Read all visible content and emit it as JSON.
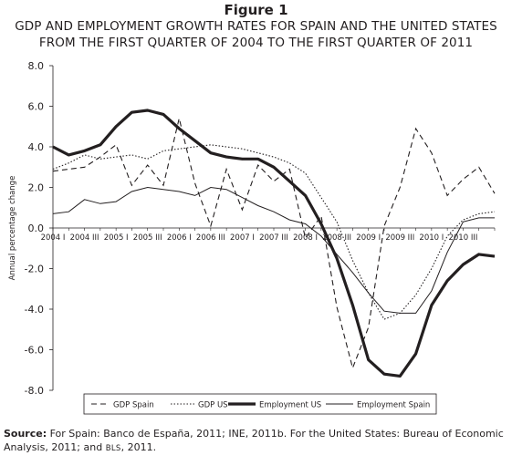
{
  "figure_label": "Figure 1",
  "title_line1": "GDP AND EMPLOYMENT GROWTH RATES FOR SPAIN AND THE UNITED STATES",
  "title_line2": "FROM THE FIRST QUARTER OF 2004 TO THE FIRST QUARTER OF 2011",
  "source": {
    "label": "Source:",
    "text_main": "For Spain: Banco de España, 2011; INE, 2011b. For the United States: Bureau of Economic Analysis, 2011; and",
    "text_smallcaps": "BLS",
    "text_end": ", 2011."
  },
  "chart_data": {
    "type": "line",
    "ylabel": "Annual percentage change",
    "ylim": [
      -8.0,
      8.0
    ],
    "yticks": [
      "8.0",
      "6.0",
      "4.0",
      "2.0",
      "0.0",
      "-2.0",
      "-4.0",
      "-6.0",
      "-8.0"
    ],
    "ytick_values": [
      8,
      6,
      4,
      2,
      0,
      -2,
      -4,
      -6,
      -8
    ],
    "xlabels": [
      "2004 I",
      "2004 III",
      "2005 I",
      "2005 III",
      "2006 I",
      "2006 III",
      "2007 I",
      "2007 III",
      "2008 I",
      "2008 III",
      "2009 I",
      "2009 III",
      "2010 I",
      "2010 III"
    ],
    "x": [
      "2004 I",
      "2004 II",
      "2004 III",
      "2004 IV",
      "2005 I",
      "2005 II",
      "2005 III",
      "2005 IV",
      "2006 I",
      "2006 II",
      "2006 III",
      "2006 IV",
      "2007 I",
      "2007 II",
      "2007 III",
      "2007 IV",
      "2008 I",
      "2008 II",
      "2008 III",
      "2008 IV",
      "2009 I",
      "2009 II",
      "2009 III",
      "2009 IV",
      "2010 I",
      "2010 II",
      "2010 III",
      "2010 IV",
      "2011 I"
    ],
    "legend_position": "bottom",
    "series": [
      {
        "name": "GDP Spain",
        "style": "dashed",
        "values": [
          2.8,
          2.9,
          3.0,
          3.5,
          4.1,
          2.1,
          3.1,
          2.1,
          5.4,
          2.2,
          0.1,
          2.9,
          0.9,
          3.1,
          2.3,
          2.9,
          -0.5,
          0.6,
          -3.9,
          -6.9,
          -4.9,
          0.1,
          2.0,
          4.9,
          3.7,
          1.6,
          2.4,
          3.0,
          1.7
        ]
      },
      {
        "name": "GDP US",
        "style": "dotted",
        "values": [
          2.9,
          3.2,
          3.6,
          3.4,
          3.5,
          3.6,
          3.4,
          3.8,
          3.9,
          4.0,
          4.1,
          4.0,
          3.9,
          3.7,
          3.5,
          3.2,
          2.7,
          1.5,
          0.3,
          -1.6,
          -3.2,
          -4.5,
          -4.2,
          -3.3,
          -2.0,
          -0.4,
          0.4,
          0.7,
          0.8
        ]
      },
      {
        "name": "Employment US",
        "style": "thick",
        "values": [
          4.0,
          3.6,
          3.8,
          4.1,
          5.0,
          5.7,
          5.8,
          5.6,
          4.9,
          4.3,
          3.7,
          3.5,
          3.4,
          3.4,
          3.0,
          2.3,
          1.6,
          0.2,
          -1.5,
          -3.8,
          -6.5,
          -7.2,
          -7.3,
          -6.2,
          -3.8,
          -2.6,
          -1.8,
          -1.3,
          -1.4
        ]
      },
      {
        "name": "Employment Spain",
        "style": "thin",
        "values": [
          0.7,
          0.8,
          1.4,
          1.2,
          1.3,
          1.8,
          2.0,
          1.9,
          1.8,
          1.6,
          2.0,
          1.9,
          1.5,
          1.1,
          0.8,
          0.4,
          0.2,
          -0.4,
          -1.3,
          -2.2,
          -3.2,
          -4.1,
          -4.2,
          -4.2,
          -3.1,
          -1.2,
          0.3,
          0.5,
          0.5
        ]
      }
    ]
  }
}
